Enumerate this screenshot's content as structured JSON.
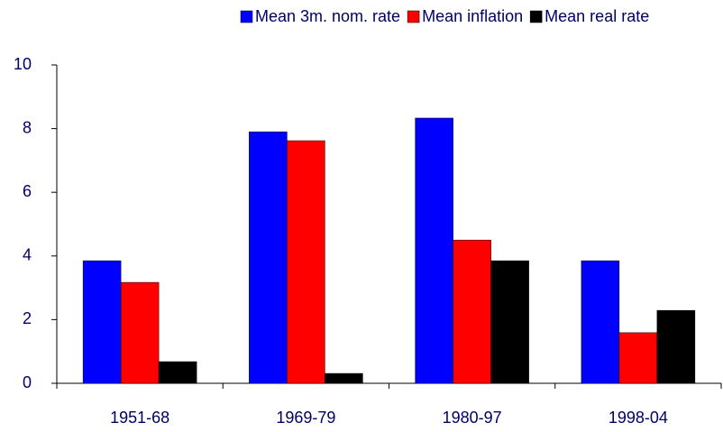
{
  "chart_data": {
    "type": "bar",
    "categories": [
      "1951-68",
      "1969-79",
      "1980-97",
      "1998-04"
    ],
    "series": [
      {
        "name": "Mean 3m. nom. rate",
        "color": "#0000ff",
        "values": [
          3.85,
          7.9,
          8.33,
          3.85
        ]
      },
      {
        "name": "Mean inflation",
        "color": "#ff0000",
        "values": [
          3.17,
          7.62,
          4.5,
          1.59
        ]
      },
      {
        "name": "Mean real rate",
        "color": "#000000",
        "values": [
          0.68,
          0.31,
          3.85,
          2.29
        ]
      }
    ],
    "ylim": [
      0,
      10
    ],
    "yticks": [
      0,
      2,
      4,
      6,
      8,
      10
    ],
    "legend": "top"
  }
}
